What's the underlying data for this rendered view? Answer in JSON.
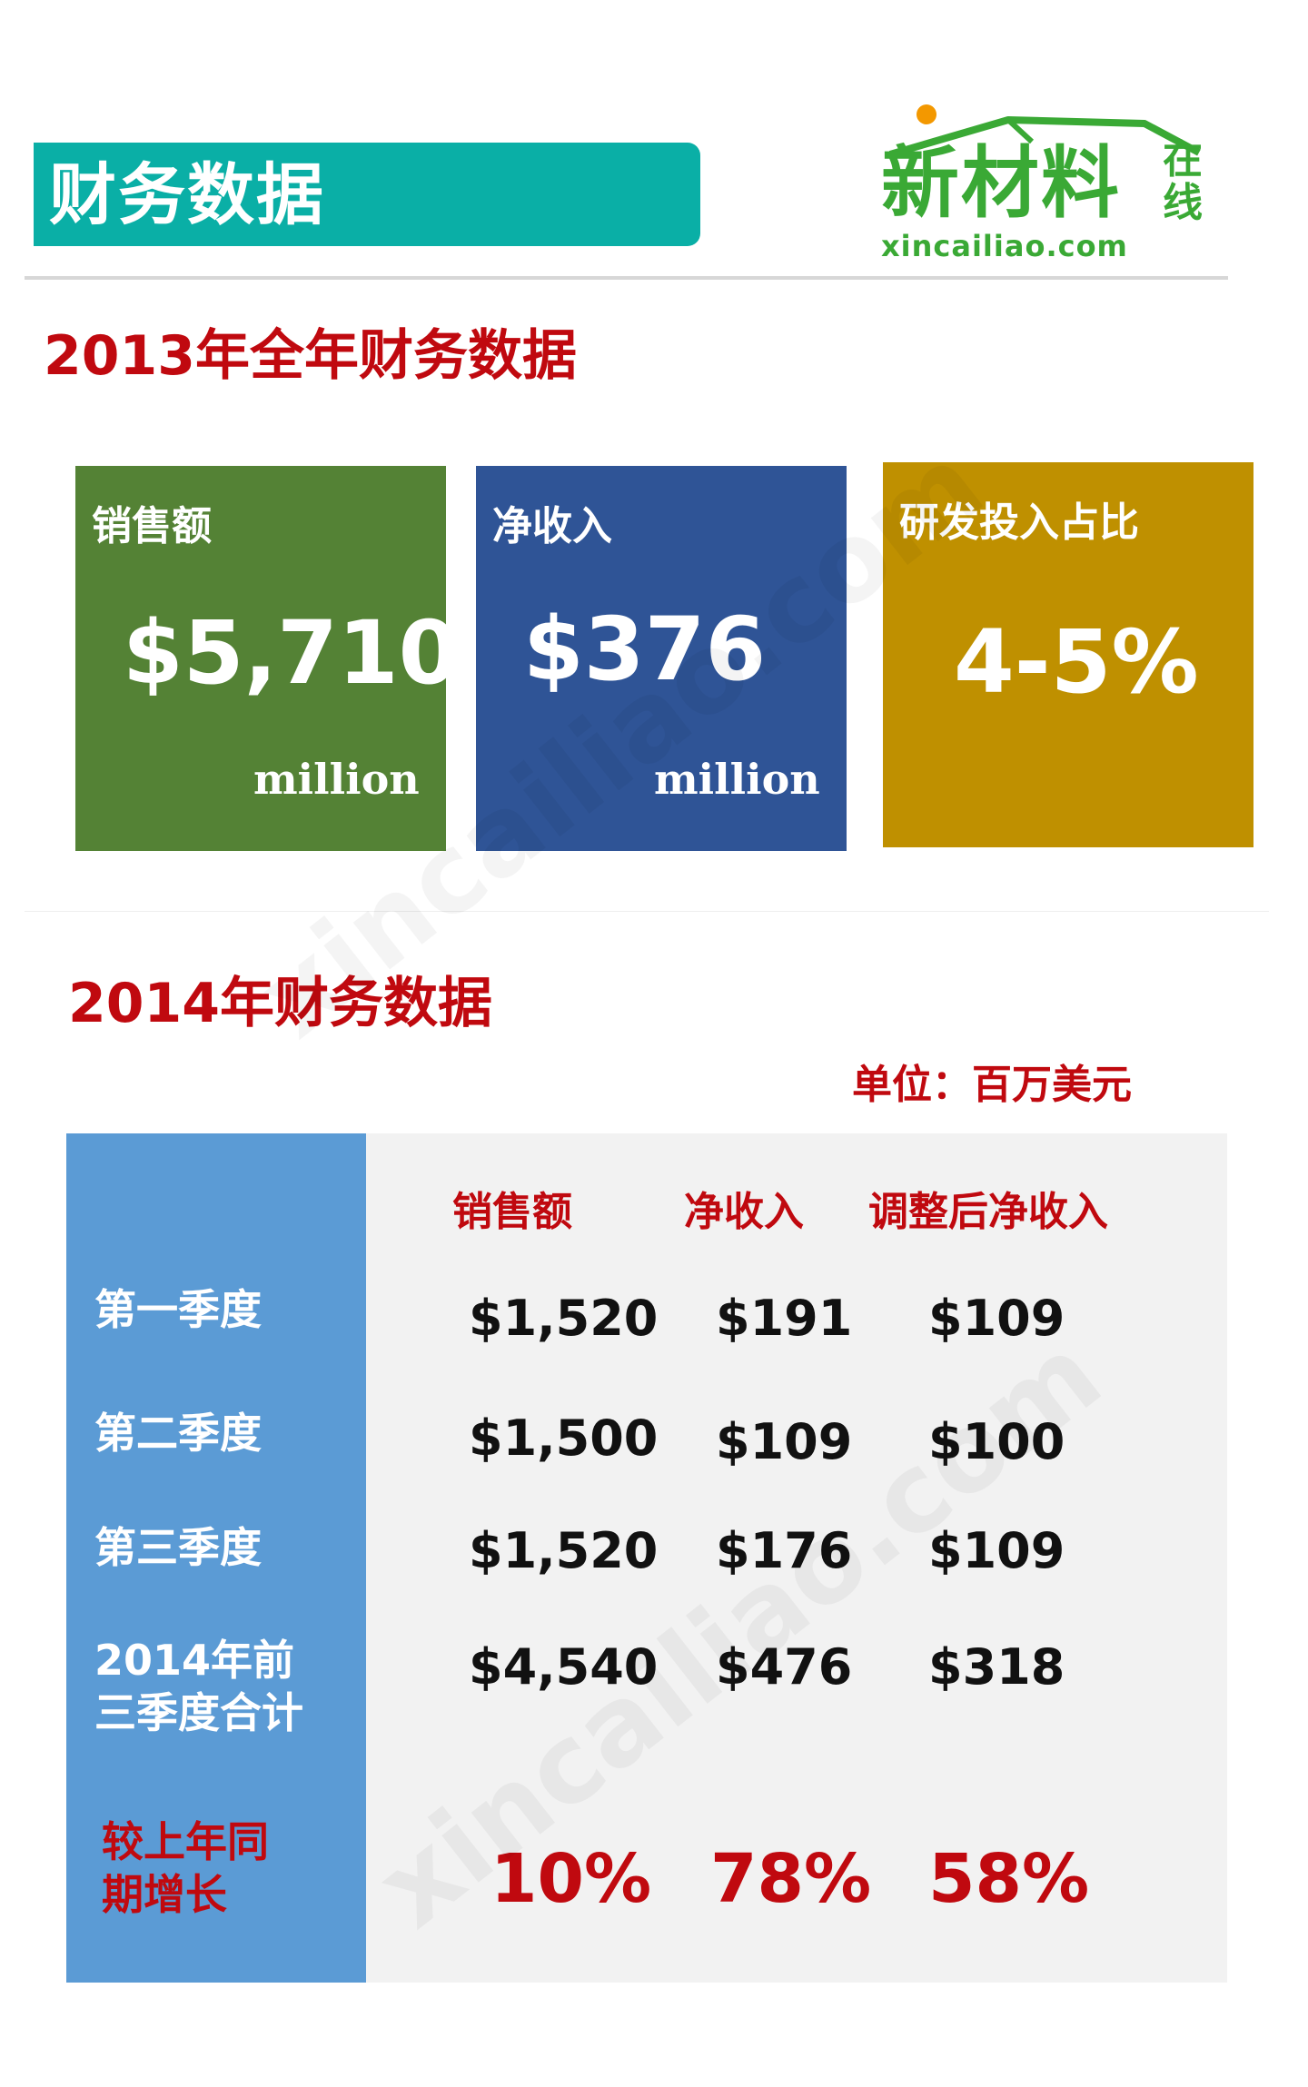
{
  "header": {
    "title": "财务数据"
  },
  "logo": {
    "name": "新材料",
    "side": "在线",
    "url": "xincailiao.com"
  },
  "section_2013": {
    "title": "2013年全年财务数据",
    "boxes": [
      {
        "label": "销售额",
        "value": "$5,710",
        "unit": "million",
        "color": "#548235"
      },
      {
        "label": "净收入",
        "value": "$376",
        "unit": "million",
        "color": "#2f5496"
      },
      {
        "label": "研发投入占比",
        "value": "4-5%",
        "color": "#bf9000"
      }
    ]
  },
  "section_2014": {
    "title": "2014年财务数据",
    "unit_note": "单位：百万美元",
    "columns": [
      "销售额",
      "净收入",
      "调整后净收入"
    ],
    "rows": [
      {
        "label": "第一季度",
        "values": [
          "$1,520",
          "$191",
          "$109"
        ]
      },
      {
        "label": "第二季度",
        "values": [
          "$1,500",
          "$109",
          "$100"
        ]
      },
      {
        "label": "第三季度",
        "values": [
          "$1,520",
          "$176",
          "$109"
        ]
      },
      {
        "label_line1": "2014年前",
        "label_line2": "三季度合计",
        "values": [
          "$4,540",
          "$476",
          "$318"
        ]
      }
    ],
    "growth": {
      "label_line1": "较上年同",
      "label_line2": "期增长",
      "values": [
        "10%",
        "78%",
        "58%"
      ]
    }
  },
  "watermark": "xincailiao.com",
  "colors": {
    "teal_banner": "#0aafa6",
    "red_heading": "#c0090f",
    "logo_green": "#3aa935",
    "table_side": "#5b9bd5"
  }
}
